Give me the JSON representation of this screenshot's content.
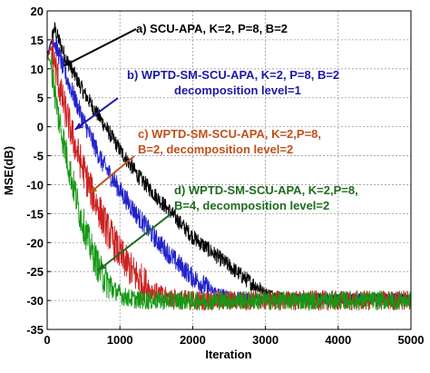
{
  "chart_data": {
    "type": "line",
    "title": "",
    "xlabel": "Iteration",
    "ylabel": "MSE(dB)",
    "xlim": [
      0,
      5000
    ],
    "ylim": [
      -35,
      20
    ],
    "xticks": [
      0,
      1000,
      2000,
      3000,
      4000,
      5000
    ],
    "yticks": [
      20,
      15,
      10,
      5,
      0,
      -5,
      -10,
      -15,
      -20,
      -25,
      -30,
      -35
    ],
    "grid": true,
    "series": [
      {
        "name": "a) SCU-APA, K=2, P=8, B=2",
        "color": "#000000",
        "x": [
          0,
          100,
          250,
          500,
          800,
          1000,
          1250,
          1500,
          1750,
          2000,
          2250,
          2500,
          2750,
          3000,
          3250,
          3500,
          4000,
          4500,
          5000
        ],
        "y": [
          12,
          17,
          12,
          6,
          0,
          -4,
          -8.5,
          -12,
          -15.5,
          -19,
          -21.5,
          -24,
          -26.5,
          -28.5,
          -29.3,
          -29.6,
          -29.6,
          -29.6,
          -29.6
        ]
      },
      {
        "name": "b) WPTD-SM-SCU-APA, K=2, P=8, B=2",
        "color": "#2222cc",
        "x": [
          0,
          80,
          250,
          500,
          750,
          1000,
          1250,
          1500,
          1750,
          2000,
          2250,
          2500,
          2750,
          3000,
          4000,
          5000
        ],
        "y": [
          12,
          15.5,
          9,
          1,
          -6,
          -11,
          -15.5,
          -19.5,
          -23,
          -26,
          -28.2,
          -29.3,
          -29.6,
          -29.7,
          -29.7,
          -29.7
        ]
      },
      {
        "name": "c) WPTD-SM-SCU-APA, K=2,P=8, B=2, decomposition level=2",
        "color": "#cc2222",
        "x": [
          0,
          60,
          200,
          400,
          600,
          800,
          1000,
          1200,
          1400,
          1600,
          1800,
          2000,
          2500,
          3000,
          4000,
          5000
        ],
        "y": [
          12,
          13.5,
          5,
          -4,
          -11,
          -17,
          -22,
          -25.5,
          -28,
          -29.3,
          -29.8,
          -30,
          -30,
          -30,
          -30,
          -30
        ]
      },
      {
        "name": "d) WPTD-SM-SCU-APA, K=2,P=8, B=4, decomposition level=2",
        "color": "#159915",
        "x": [
          0,
          50,
          150,
          300,
          450,
          600,
          750,
          900,
          1050,
          1200,
          1400,
          1600,
          2000,
          3000,
          4000,
          5000
        ],
        "y": [
          12,
          11,
          2,
          -7,
          -15,
          -21,
          -25.5,
          -28,
          -29.3,
          -29.8,
          -30,
          -30,
          -30,
          -30,
          -30,
          -30
        ]
      }
    ],
    "annotations": [
      {
        "lines": [
          "a) SCU-APA, K=2, P=8, B=2"
        ],
        "color": "#000000",
        "pointer": [
          230,
          10.5
        ]
      },
      {
        "lines": [
          "b) WPTD-SM-SCU-APA, K=2, P=8, B=2",
          "decomposition level=1"
        ],
        "color": "#1a1aa6",
        "pointer": [
          380,
          -0.5
        ]
      },
      {
        "lines": [
          "c) WPTD-SM-SCU-APA, K=2,P=8,",
          "B=2, decomposition level=2"
        ],
        "color": "#c0501a",
        "pointer": [
          580,
          -11.5
        ]
      },
      {
        "lines": [
          "d) WPTD-SM-SCU-APA, K=2,P=8,",
          "B=4, decomposition level=2"
        ],
        "color": "#1e6b1e",
        "pointer": [
          700,
          -24.8
        ]
      }
    ]
  }
}
